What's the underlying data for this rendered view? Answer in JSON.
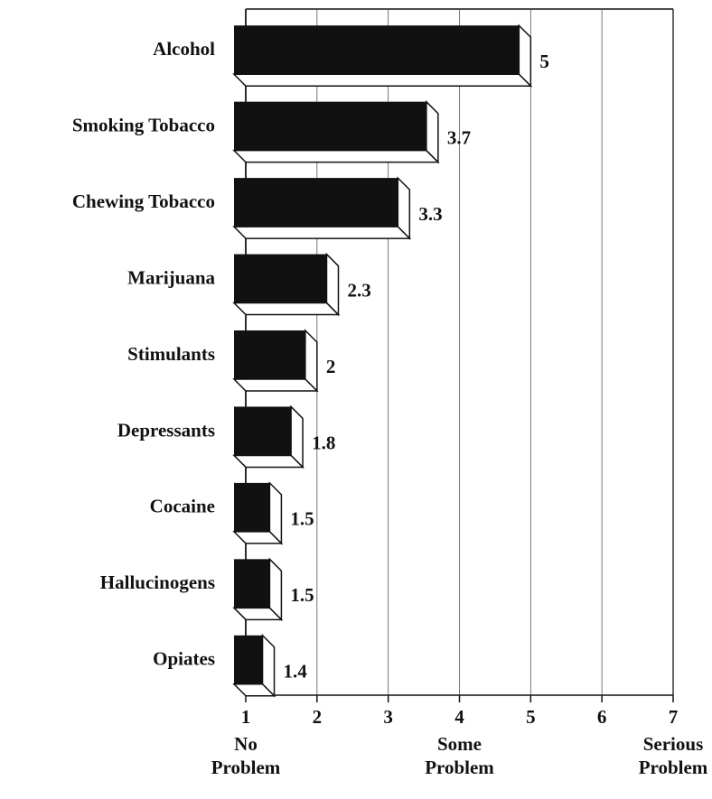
{
  "chart_data": {
    "type": "barh",
    "categories": [
      "Alcohol",
      "Smoking Tobacco",
      "Chewing Tobacco",
      "Marijuana",
      "Stimulants",
      "Depressants",
      "Cocaine",
      "Hallucinogens",
      "Opiates"
    ],
    "values": [
      5,
      3.7,
      3.3,
      2.3,
      2,
      1.8,
      1.5,
      1.5,
      1.4
    ],
    "color": "#111111",
    "xlim": [
      1,
      7
    ],
    "xticks": [
      1,
      2,
      3,
      4,
      5,
      6,
      7
    ],
    "grid": true,
    "annotations": [
      [
        "No",
        "Problem"
      ],
      [
        "Some",
        "Problem"
      ],
      [
        "Serious",
        "Problem"
      ]
    ]
  }
}
